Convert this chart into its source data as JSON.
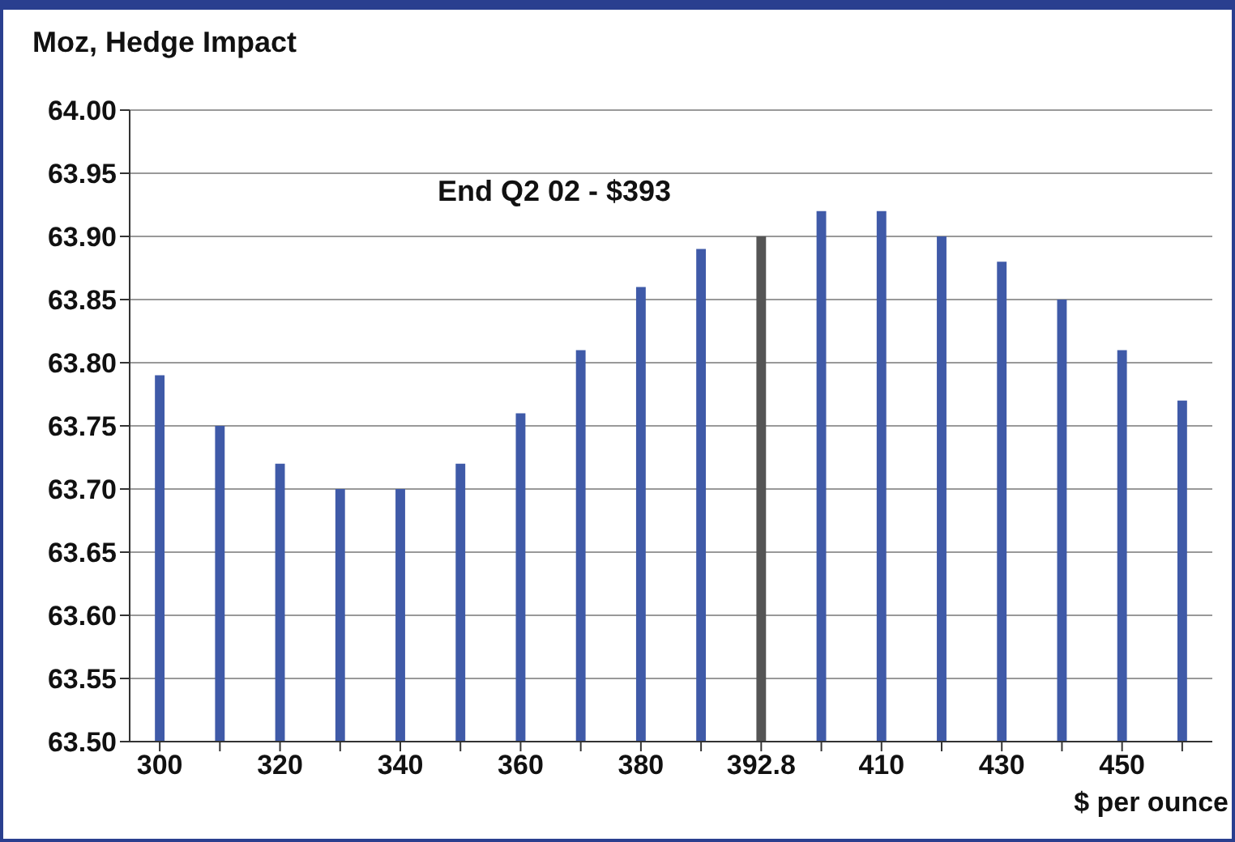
{
  "chart_data": {
    "type": "bar",
    "title": "Moz, Hedge Impact",
    "xlabel": "$ per ounce",
    "annotations": [
      "End Q2 02 - $393"
    ],
    "categories": [
      "300",
      null,
      "320",
      null,
      "340",
      null,
      "360",
      null,
      "380",
      null,
      "392.8",
      null,
      "410",
      null,
      "430",
      null,
      "450",
      null
    ],
    "values": [
      63.79,
      63.75,
      63.72,
      63.7,
      63.7,
      63.72,
      63.76,
      63.81,
      63.86,
      63.89,
      63.9,
      63.92,
      63.92,
      63.9,
      63.88,
      63.85,
      63.81,
      63.77
    ],
    "colors": [
      "#3f5aa8",
      "#3f5aa8",
      "#3f5aa8",
      "#3f5aa8",
      "#3f5aa8",
      "#3f5aa8",
      "#3f5aa8",
      "#3f5aa8",
      "#3f5aa8",
      "#3f5aa8",
      "#555555",
      "#3f5aa8",
      "#3f5aa8",
      "#3f5aa8",
      "#3f5aa8",
      "#3f5aa8",
      "#3f5aa8",
      "#3f5aa8"
    ],
    "ylim": [
      63.5,
      64.0
    ],
    "yticks": [
      {
        "value": 63.5,
        "label": "63.50"
      },
      {
        "value": 63.55,
        "label": "63.55"
      },
      {
        "value": 63.6,
        "label": "63.60"
      },
      {
        "value": 63.65,
        "label": "63.65"
      },
      {
        "value": 63.7,
        "label": "63.70"
      },
      {
        "value": 63.75,
        "label": "63.75"
      },
      {
        "value": 63.8,
        "label": "63.80"
      },
      {
        "value": 63.85,
        "label": "63.85"
      },
      {
        "value": 63.9,
        "label": "63.90"
      },
      {
        "value": 63.95,
        "label": "63.95"
      },
      {
        "value": 64.0,
        "label": "64.00"
      }
    ],
    "grid": "y"
  }
}
